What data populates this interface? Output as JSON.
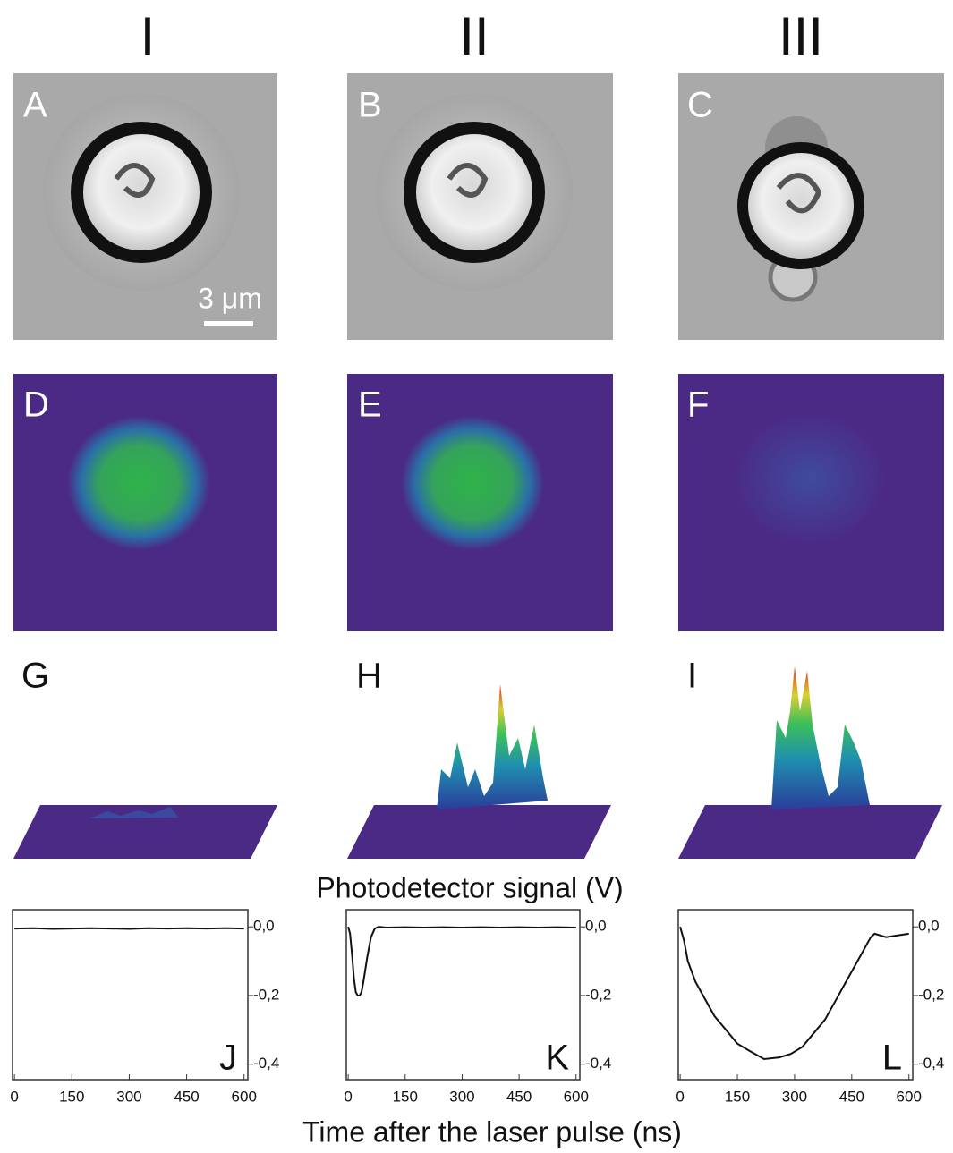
{
  "columns": [
    "I",
    "II",
    "III"
  ],
  "panels": {
    "images": [
      "A",
      "B",
      "C"
    ],
    "maps": [
      "D",
      "E",
      "F"
    ],
    "surfaces": [
      "G",
      "H",
      "I"
    ]
  },
  "scale_bar": "3 μm",
  "y_label": "Photodetector signal (V)",
  "x_label": "Time after the laser pulse (ns)",
  "chart_data": [
    {
      "type": "line",
      "panel": "J",
      "color": "#111",
      "x": [
        0,
        50,
        100,
        150,
        200,
        250,
        300,
        350,
        400,
        450,
        500,
        550,
        600
      ],
      "values": [
        -0.005,
        -0.004,
        -0.006,
        -0.005,
        -0.004,
        -0.005,
        -0.006,
        -0.004,
        -0.005,
        -0.004,
        -0.005,
        -0.004,
        -0.005
      ],
      "xlim": [
        -5,
        610
      ],
      "ylim": [
        -0.445,
        0.05
      ],
      "xticks": [
        0,
        150,
        300,
        450,
        600
      ],
      "yticks": [
        {
          "value": 0,
          "label": "0,0"
        },
        {
          "value": -0.2,
          "label": "-0,2"
        },
        {
          "value": -0.4,
          "label": "-0,4"
        }
      ]
    },
    {
      "type": "line",
      "panel": "K",
      "color": "#111",
      "x": [
        0,
        5,
        10,
        15,
        20,
        25,
        30,
        35,
        40,
        50,
        60,
        70,
        80,
        100,
        150,
        200,
        250,
        300,
        350,
        400,
        450,
        500,
        550,
        600
      ],
      "values": [
        0,
        -0.02,
        -0.08,
        -0.15,
        -0.19,
        -0.2,
        -0.2,
        -0.19,
        -0.16,
        -0.09,
        -0.03,
        -0.005,
        0,
        -0.002,
        -0.001,
        -0.002,
        -0.001,
        -0.002,
        -0.001,
        -0.002,
        -0.001,
        -0.002,
        -0.001,
        -0.002
      ],
      "xlim": [
        -5,
        610
      ],
      "ylim": [
        -0.445,
        0.05
      ],
      "xticks": [
        0,
        150,
        300,
        450,
        600
      ],
      "yticks": [
        {
          "value": 0,
          "label": "0,0"
        },
        {
          "value": -0.2,
          "label": "-0,2"
        },
        {
          "value": -0.4,
          "label": "-0,4"
        }
      ]
    },
    {
      "type": "line",
      "panel": "L",
      "color": "#111",
      "x": [
        0,
        10,
        20,
        40,
        60,
        90,
        120,
        150,
        180,
        220,
        260,
        290,
        320,
        350,
        380,
        410,
        430,
        460,
        480,
        500,
        510,
        540,
        570,
        600
      ],
      "values": [
        0,
        -0.04,
        -0.1,
        -0.16,
        -0.2,
        -0.26,
        -0.3,
        -0.34,
        -0.36,
        -0.385,
        -0.38,
        -0.37,
        -0.35,
        -0.31,
        -0.27,
        -0.21,
        -0.17,
        -0.11,
        -0.07,
        -0.03,
        -0.02,
        -0.03,
        -0.025,
        -0.02
      ],
      "xlim": [
        -5,
        610
      ],
      "ylim": [
        -0.445,
        0.05
      ],
      "xticks": [
        0,
        150,
        300,
        450,
        600
      ],
      "yticks": [
        {
          "value": 0,
          "label": "0,0"
        },
        {
          "value": -0.2,
          "label": "-0,2"
        },
        {
          "value": -0.4,
          "label": "-0,4"
        }
      ]
    }
  ]
}
